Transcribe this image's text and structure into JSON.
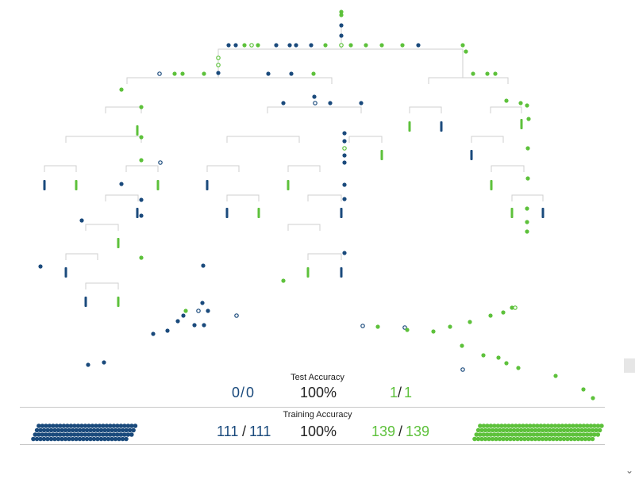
{
  "colors": {
    "blue": "#1a4a7c",
    "green": "#5dc13b",
    "line": "#cfcfcf",
    "text": "#222222"
  },
  "test_accuracy": {
    "title": "Test Accuracy",
    "blue_correct": "0",
    "blue_sep": "/",
    "blue_total": "0",
    "percent": "100%",
    "green_correct": "1",
    "green_sep": "/",
    "green_total": "1"
  },
  "training_accuracy": {
    "title": "Training Accuracy",
    "blue_correct": "111",
    "blue_sep": "/",
    "blue_total": "111",
    "percent": "100%",
    "green_correct": "139",
    "green_sep": "/",
    "green_total": "139",
    "blue_count": 111,
    "green_count": 139
  },
  "icons": {
    "scroll_down": "chevron-down-icon"
  }
}
